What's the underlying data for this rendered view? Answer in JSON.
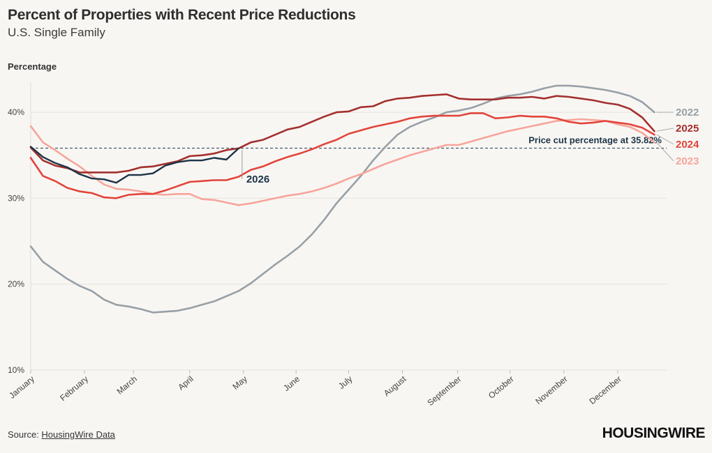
{
  "header": {
    "title": "Percent of Properties with Recent Price Reductions",
    "subtitle": "U.S. Single Family",
    "ylabel": "Percentage"
  },
  "footer": {
    "source_prefix": "Source: ",
    "source_link": "HousingWire Data",
    "logo": "HOUSINGWIRE"
  },
  "chart_data": {
    "type": "line",
    "title": "Percent of Properties with Recent Price Reductions",
    "subtitle": "U.S. Single Family",
    "ylabel": "Percentage",
    "xlabel": "",
    "ylim": [
      10,
      43.5
    ],
    "yticks": [
      10,
      20,
      30,
      40
    ],
    "ytick_labels": [
      "10%",
      "20%",
      "30%",
      "40%"
    ],
    "xlim": [
      0,
      52
    ],
    "x_unit": "week of year",
    "xticks": [
      0,
      4.4,
      8.4,
      13,
      17.4,
      21.7,
      26,
      30.4,
      34.9,
      39.2,
      43.6,
      48
    ],
    "xtick_labels": [
      "January",
      "February",
      "March",
      "April",
      "May",
      "June",
      "July",
      "August",
      "September",
      "October",
      "November",
      "December"
    ],
    "grid": true,
    "reference_line": {
      "value": 35.82,
      "label": "Price cut percentage at 35.82%"
    },
    "series": [
      {
        "name": "2022",
        "color": "#97a0a6",
        "values": [
          [
            0,
            24.4
          ],
          [
            1,
            22.6
          ],
          [
            2,
            21.6
          ],
          [
            3,
            20.6
          ],
          [
            4,
            19.8
          ],
          [
            5,
            19.2
          ],
          [
            6,
            18.2
          ],
          [
            7,
            17.6
          ],
          [
            8,
            17.4
          ],
          [
            9,
            17.1
          ],
          [
            10,
            16.7
          ],
          [
            11,
            16.8
          ],
          [
            12,
            16.9
          ],
          [
            13,
            17.2
          ],
          [
            14,
            17.6
          ],
          [
            15,
            18.0
          ],
          [
            16,
            18.6
          ],
          [
            17,
            19.2
          ],
          [
            18,
            20.1
          ],
          [
            19,
            21.2
          ],
          [
            20,
            22.3
          ],
          [
            21,
            23.3
          ],
          [
            22,
            24.4
          ],
          [
            23,
            25.8
          ],
          [
            24,
            27.5
          ],
          [
            25,
            29.4
          ],
          [
            26,
            31.0
          ],
          [
            27,
            32.6
          ],
          [
            28,
            34.4
          ],
          [
            29,
            36.0
          ],
          [
            30,
            37.4
          ],
          [
            31,
            38.3
          ],
          [
            32,
            38.9
          ],
          [
            33,
            39.4
          ],
          [
            34,
            40.0
          ],
          [
            35,
            40.2
          ],
          [
            36,
            40.5
          ],
          [
            37,
            41.0
          ],
          [
            38,
            41.6
          ],
          [
            39,
            41.9
          ],
          [
            40,
            42.1
          ],
          [
            41,
            42.4
          ],
          [
            42,
            42.8
          ],
          [
            43,
            43.1
          ],
          [
            44,
            43.1
          ],
          [
            45,
            43.0
          ],
          [
            46,
            42.8
          ],
          [
            47,
            42.6
          ],
          [
            48,
            42.3
          ],
          [
            49,
            41.9
          ],
          [
            50,
            41.2
          ],
          [
            51,
            40.0
          ]
        ]
      },
      {
        "name": "2023",
        "color": "#f6a59b",
        "values": [
          [
            0,
            38.4
          ],
          [
            1,
            36.5
          ],
          [
            2,
            35.6
          ],
          [
            3,
            34.6
          ],
          [
            4,
            33.7
          ],
          [
            5,
            32.6
          ],
          [
            6,
            31.6
          ],
          [
            7,
            31.1
          ],
          [
            8,
            31.0
          ],
          [
            9,
            30.8
          ],
          [
            10,
            30.5
          ],
          [
            11,
            30.4
          ],
          [
            12,
            30.5
          ],
          [
            13,
            30.5
          ],
          [
            14,
            29.9
          ],
          [
            15,
            29.8
          ],
          [
            16,
            29.5
          ],
          [
            17,
            29.2
          ],
          [
            18,
            29.4
          ],
          [
            19,
            29.7
          ],
          [
            20,
            30.0
          ],
          [
            21,
            30.3
          ],
          [
            22,
            30.5
          ],
          [
            23,
            30.8
          ],
          [
            24,
            31.2
          ],
          [
            25,
            31.7
          ],
          [
            26,
            32.3
          ],
          [
            27,
            32.8
          ],
          [
            28,
            33.4
          ],
          [
            29,
            34.0
          ],
          [
            30,
            34.5
          ],
          [
            31,
            35.0
          ],
          [
            32,
            35.4
          ],
          [
            33,
            35.8
          ],
          [
            34,
            36.2
          ],
          [
            35,
            36.2
          ],
          [
            36,
            36.6
          ],
          [
            37,
            37.0
          ],
          [
            38,
            37.4
          ],
          [
            39,
            37.8
          ],
          [
            40,
            38.1
          ],
          [
            41,
            38.4
          ],
          [
            42,
            38.7
          ],
          [
            43,
            39.0
          ],
          [
            44,
            39.1
          ],
          [
            45,
            39.2
          ],
          [
            46,
            39.1
          ],
          [
            47,
            39.0
          ],
          [
            48,
            38.6
          ],
          [
            49,
            38.3
          ],
          [
            50,
            37.6
          ],
          [
            51,
            36.5
          ]
        ]
      },
      {
        "name": "2024",
        "color": "#e2443b",
        "values": [
          [
            0,
            34.7
          ],
          [
            1,
            32.6
          ],
          [
            2,
            32.0
          ],
          [
            3,
            31.2
          ],
          [
            4,
            30.8
          ],
          [
            5,
            30.6
          ],
          [
            6,
            30.1
          ],
          [
            7,
            30.0
          ],
          [
            8,
            30.4
          ],
          [
            9,
            30.5
          ],
          [
            10,
            30.5
          ],
          [
            11,
            30.9
          ],
          [
            12,
            31.4
          ],
          [
            13,
            31.9
          ],
          [
            14,
            32.0
          ],
          [
            15,
            32.1
          ],
          [
            16,
            32.1
          ],
          [
            17,
            32.5
          ],
          [
            18,
            33.3
          ],
          [
            19,
            33.7
          ],
          [
            20,
            34.3
          ],
          [
            21,
            34.8
          ],
          [
            22,
            35.2
          ],
          [
            23,
            35.7
          ],
          [
            24,
            36.3
          ],
          [
            25,
            36.8
          ],
          [
            26,
            37.5
          ],
          [
            27,
            37.9
          ],
          [
            28,
            38.3
          ],
          [
            29,
            38.6
          ],
          [
            30,
            38.9
          ],
          [
            31,
            39.3
          ],
          [
            32,
            39.5
          ],
          [
            33,
            39.6
          ],
          [
            34,
            39.6
          ],
          [
            35,
            39.6
          ],
          [
            36,
            39.9
          ],
          [
            37,
            39.9
          ],
          [
            38,
            39.3
          ],
          [
            39,
            39.4
          ],
          [
            40,
            39.6
          ],
          [
            41,
            39.5
          ],
          [
            42,
            39.5
          ],
          [
            43,
            39.3
          ],
          [
            44,
            38.9
          ],
          [
            45,
            38.7
          ],
          [
            46,
            38.8
          ],
          [
            47,
            39.0
          ],
          [
            48,
            38.8
          ],
          [
            49,
            38.6
          ],
          [
            50,
            38.2
          ],
          [
            51,
            37.4
          ]
        ]
      },
      {
        "name": "2025",
        "color": "#a3302d",
        "values": [
          [
            0,
            35.9
          ],
          [
            1,
            34.4
          ],
          [
            2,
            33.8
          ],
          [
            3,
            33.5
          ],
          [
            4,
            33.0
          ],
          [
            5,
            33.0
          ],
          [
            6,
            33.0
          ],
          [
            7,
            33.0
          ],
          [
            8,
            33.2
          ],
          [
            9,
            33.6
          ],
          [
            10,
            33.7
          ],
          [
            11,
            34.0
          ],
          [
            12,
            34.3
          ],
          [
            13,
            34.9
          ],
          [
            14,
            35.0
          ],
          [
            15,
            35.2
          ],
          [
            16,
            35.6
          ],
          [
            17,
            35.8
          ],
          [
            18,
            36.5
          ],
          [
            19,
            36.8
          ],
          [
            20,
            37.4
          ],
          [
            21,
            38.0
          ],
          [
            22,
            38.3
          ],
          [
            23,
            38.9
          ],
          [
            24,
            39.5
          ],
          [
            25,
            40.0
          ],
          [
            26,
            40.1
          ],
          [
            27,
            40.6
          ],
          [
            28,
            40.7
          ],
          [
            29,
            41.3
          ],
          [
            30,
            41.6
          ],
          [
            31,
            41.7
          ],
          [
            32,
            41.9
          ],
          [
            33,
            42.0
          ],
          [
            34,
            42.1
          ],
          [
            35,
            41.6
          ],
          [
            36,
            41.5
          ],
          [
            37,
            41.5
          ],
          [
            38,
            41.5
          ],
          [
            39,
            41.7
          ],
          [
            40,
            41.7
          ],
          [
            41,
            41.8
          ],
          [
            42,
            41.6
          ],
          [
            43,
            41.9
          ],
          [
            44,
            41.8
          ],
          [
            45,
            41.6
          ],
          [
            46,
            41.4
          ],
          [
            47,
            41.1
          ],
          [
            48,
            40.9
          ],
          [
            49,
            40.4
          ],
          [
            50,
            39.4
          ],
          [
            51,
            37.8
          ]
        ]
      },
      {
        "name": "2026",
        "color": "#1b3447",
        "values": [
          [
            0,
            36.0
          ],
          [
            1,
            34.8
          ],
          [
            2,
            34.1
          ],
          [
            3,
            33.6
          ],
          [
            4,
            32.8
          ],
          [
            5,
            32.3
          ],
          [
            6,
            32.2
          ],
          [
            7,
            31.8
          ],
          [
            8,
            32.7
          ],
          [
            9,
            32.7
          ],
          [
            10,
            32.9
          ],
          [
            11,
            33.8
          ],
          [
            12,
            34.2
          ],
          [
            13,
            34.4
          ],
          [
            14,
            34.4
          ],
          [
            15,
            34.7
          ],
          [
            16,
            34.5
          ],
          [
            17,
            35.8
          ]
        ]
      }
    ]
  }
}
